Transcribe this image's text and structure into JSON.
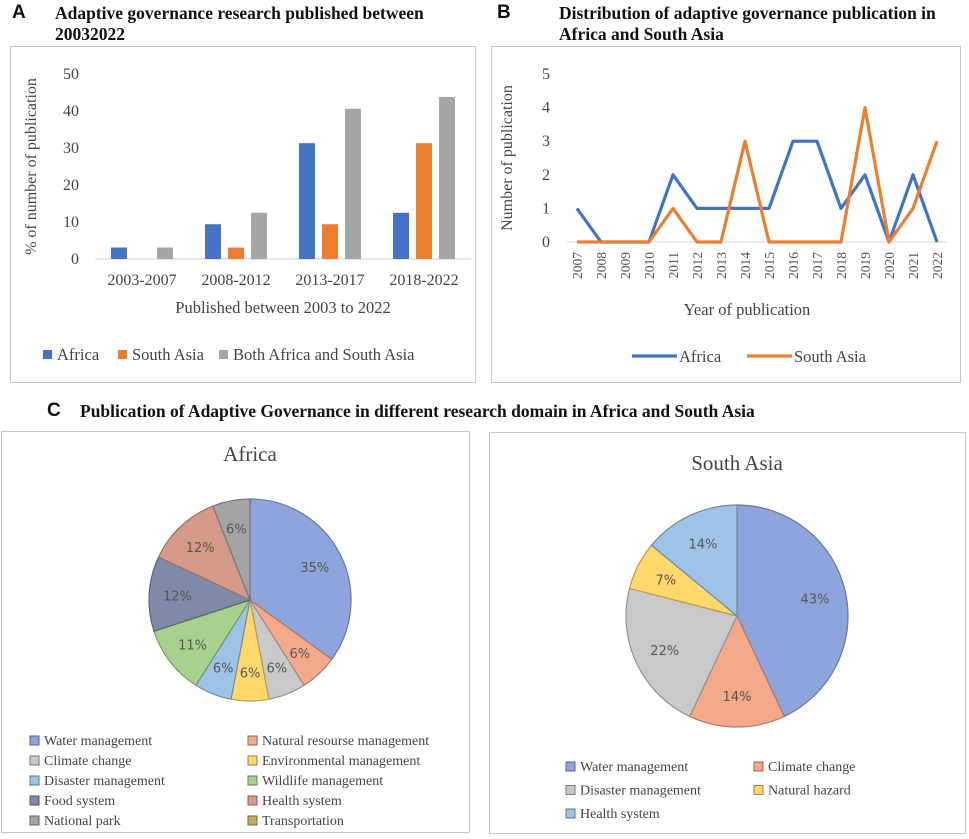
{
  "panel_a": {
    "letter": "A",
    "title_line1": "Adaptive governance research published between",
    "title_line2": "20032022"
  },
  "panel_b": {
    "letter": "B",
    "title_line1": "Distribution of adaptive governance publication in",
    "title_line2": "Africa and South Asia"
  },
  "panel_c": {
    "letter": "C",
    "title": "Publication of Adaptive Governance in different research domain in Africa and South Asia"
  },
  "colors": {
    "africa": "#4472C4",
    "south_asia": "#ED7D31",
    "both": "#A5A5A5"
  },
  "chart_data": [
    {
      "id": "A",
      "type": "bar",
      "categories": [
        "2003-2007",
        "2008-2012",
        "2013-2017",
        "2018-2022"
      ],
      "series": [
        {
          "name": "Africa",
          "values": [
            3.1,
            9.4,
            31.3,
            12.5
          ]
        },
        {
          "name": "South Asia",
          "values": [
            0,
            3.1,
            9.4,
            31.3
          ]
        },
        {
          "name": "Both Africa and South Asia",
          "values": [
            3.1,
            12.5,
            40.6,
            43.8
          ]
        }
      ],
      "xlabel": "Published between 2003 to 2022",
      "ylabel": "% of number of publication",
      "ylim": [
        0,
        50
      ],
      "yticks": [
        "0",
        "10",
        "20",
        "30",
        "40",
        "50"
      ],
      "legend": "bottom"
    },
    {
      "id": "B",
      "type": "line",
      "x": [
        "2007",
        "2008",
        "2009",
        "2010",
        "2011",
        "2012",
        "2013",
        "2014",
        "2015",
        "2016",
        "2017",
        "2018",
        "2019",
        "2020",
        "2021",
        "2022"
      ],
      "series": [
        {
          "name": "Africa",
          "values": [
            1,
            0,
            0,
            0,
            2,
            1,
            1,
            1,
            1,
            3,
            3,
            1,
            2,
            0,
            2,
            0
          ]
        },
        {
          "name": "South Asia",
          "values": [
            0,
            0,
            0,
            0,
            1,
            0,
            0,
            3,
            0,
            0,
            0,
            0,
            4,
            0,
            1,
            3
          ]
        }
      ],
      "xlabel": "Year of publication",
      "ylabel": "Number of publication",
      "ylim": [
        0,
        5
      ],
      "yticks": [
        "0",
        "1",
        "2",
        "3",
        "4",
        "5"
      ],
      "legend": "bottom"
    },
    {
      "id": "C-Africa",
      "type": "pie",
      "title": "Africa",
      "slices": [
        {
          "name": "Water management",
          "value": 35,
          "label": "35%",
          "color": "#8EA4DC"
        },
        {
          "name": "Natural resourse management",
          "value": 6,
          "label": "6%",
          "color": "#F4A98A"
        },
        {
          "name": "Climate change",
          "value": 6,
          "label": "6%",
          "color": "#C9C9C9"
        },
        {
          "name": "Environmental management",
          "value": 6,
          "label": "6%",
          "color": "#FFD86B"
        },
        {
          "name": "Disaster management",
          "value": 6,
          "label": "6%",
          "color": "#9DC3E6"
        },
        {
          "name": "Wildlife management",
          "value": 11,
          "label": "11%",
          "color": "#A9D18E"
        },
        {
          "name": "Food system",
          "value": 12,
          "label": "12%",
          "color": "#7F8AA8"
        },
        {
          "name": "Health system",
          "value": 12,
          "label": "12%",
          "color": "#D59A8A"
        },
        {
          "name": "National park",
          "value": 6,
          "label": "6%",
          "color": "#A5A5A5"
        },
        {
          "name": "Transportation",
          "value": 0,
          "label": "",
          "color": "#C7A960"
        }
      ],
      "legend": "bottom"
    },
    {
      "id": "C-SouthAsia",
      "type": "pie",
      "title": "South Asia",
      "slices": [
        {
          "name": "Water management",
          "value": 43,
          "label": "43%",
          "color": "#8EA4DC"
        },
        {
          "name": "Climate change",
          "value": 14,
          "label": "14%",
          "color": "#F4A98A"
        },
        {
          "name": "Disaster management",
          "value": 22,
          "label": "22%",
          "color": "#C9C9C9"
        },
        {
          "name": "Natural hazard",
          "value": 7,
          "label": "7%",
          "color": "#FFD86B"
        },
        {
          "name": "Health system",
          "value": 14,
          "label": "14%",
          "color": "#9DC3E6"
        }
      ],
      "legend": "bottom"
    }
  ]
}
